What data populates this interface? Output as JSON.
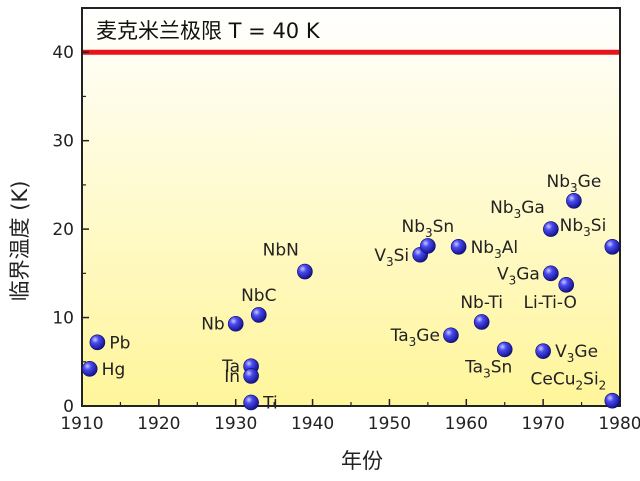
{
  "chart_data": {
    "type": "scatter",
    "xlabel": "年份",
    "ylabel": "临界温度 (K)",
    "xlim": [
      1910,
      1980
    ],
    "ylim": [
      0,
      45
    ],
    "xticks": [
      1910,
      1920,
      1930,
      1940,
      1950,
      1960,
      1970,
      1980
    ],
    "yticks": [
      0,
      10,
      20,
      30,
      40
    ],
    "limit_line": {
      "y": 40,
      "label": "麦克米兰极限 T = 40 K",
      "color": "#e8141b"
    },
    "point_color": "#2a2ad8",
    "background_gradient": [
      "#ffffff",
      "#fff59a"
    ],
    "points": [
      {
        "x": 1911,
        "y": 4.2,
        "label": "Hg",
        "side": "right"
      },
      {
        "x": 1912,
        "y": 7.2,
        "label": "Pb",
        "side": "right"
      },
      {
        "x": 1930,
        "y": 9.3,
        "label": "Nb",
        "side": "left"
      },
      {
        "x": 1933,
        "y": 10.3,
        "label": "NbC",
        "side": "above"
      },
      {
        "x": 1932,
        "y": 4.5,
        "label": "Ta",
        "side": "left"
      },
      {
        "x": 1932,
        "y": 3.4,
        "label": "In",
        "side": "left"
      },
      {
        "x": 1932,
        "y": 0.4,
        "label": "Ti",
        "side": "right"
      },
      {
        "x": 1939,
        "y": 15.2,
        "label": "NbN",
        "side": "above-left"
      },
      {
        "x": 1954,
        "y": 17.1,
        "label": "V_3Si",
        "side": "left"
      },
      {
        "x": 1955,
        "y": 18.1,
        "label": "Nb_3Sn",
        "side": "above"
      },
      {
        "x": 1958,
        "y": 8.0,
        "label": "Ta_3Ge",
        "side": "left"
      },
      {
        "x": 1959,
        "y": 18.0,
        "label": "Nb_3Al",
        "side": "right"
      },
      {
        "x": 1962,
        "y": 9.5,
        "label": "Nb-Ti",
        "side": "above"
      },
      {
        "x": 1965,
        "y": 6.4,
        "label": "Ta_3Sn",
        "side": "below"
      },
      {
        "x": 1970,
        "y": 6.2,
        "label": "V_3Ge",
        "side": "right"
      },
      {
        "x": 1971,
        "y": 15.0,
        "label": "V_3Ga",
        "side": "left"
      },
      {
        "x": 1971,
        "y": 20.0,
        "label": "Nb_3Ga",
        "side": "above-left"
      },
      {
        "x": 1973,
        "y": 13.7,
        "label": "Li-Ti-O",
        "side": "below"
      },
      {
        "x": 1974,
        "y": 23.2,
        "label": "Nb_3Ge",
        "side": "above"
      },
      {
        "x": 1979,
        "y": 18.0,
        "label": "Nb_3Si",
        "side": "above-left"
      },
      {
        "x": 1979,
        "y": 0.6,
        "label": "CeCu_2Si_2",
        "side": "above-left"
      }
    ]
  }
}
